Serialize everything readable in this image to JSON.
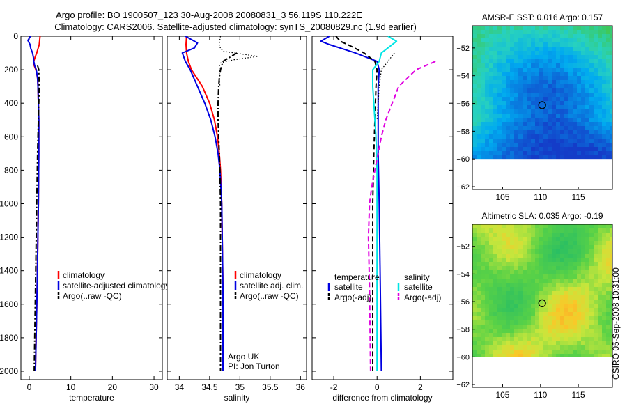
{
  "header": {
    "line1": "Argo profile: BO 1900507_123 30-Aug-2008 20080831_3 56.119S 110.222E",
    "line2": "Climatology: CARS2006. Satellite-adjusted climatology: synTS_20080829.nc (1.9d earlier)"
  },
  "side_text": "CSIRO 05-Sep-2008 10:31:00",
  "colors": {
    "red": "#ff0000",
    "blue": "#0000e0",
    "black": "#000000",
    "cyan": "#00e5e5",
    "magenta": "#e000e0"
  },
  "chart_data": [
    {
      "type": "line",
      "xlabel": "temperature",
      "xlim": [
        -2,
        32
      ],
      "xticks": [
        0,
        10,
        20,
        30
      ],
      "ylim": [
        2050,
        0
      ],
      "yticks": [
        0,
        200,
        400,
        600,
        800,
        1000,
        1200,
        1400,
        1600,
        1800,
        2000
      ],
      "legend": {
        "position": "lower-right",
        "entries": [
          "climatology",
          "satellite-adjusted climatology",
          "Argo(..raw -QC)"
        ]
      },
      "series": [
        {
          "name": "climatology",
          "color": "red",
          "style": "solid",
          "depth": [
            0,
            25,
            50,
            75,
            100,
            125,
            150,
            175,
            200,
            250,
            300,
            400,
            500,
            700,
            1000,
            1500,
            2000
          ],
          "values": [
            2.6,
            2.5,
            2.4,
            2.1,
            1.8,
            1.4,
            1.1,
            1.2,
            1.6,
            2.0,
            2.1,
            2.2,
            2.3,
            2.3,
            2.2,
            1.9,
            1.5
          ]
        },
        {
          "name": "satellite-adjusted climatology",
          "color": "blue",
          "style": "solid",
          "depth": [
            0,
            25,
            50,
            75,
            100,
            125,
            150,
            175,
            200,
            250,
            300,
            400,
            500,
            700,
            1000,
            1500,
            2000
          ],
          "values": [
            0.3,
            -0.3,
            0.2,
            0.4,
            0.8,
            1.0,
            1.1,
            1.3,
            1.7,
            2.0,
            2.1,
            2.2,
            2.3,
            2.3,
            2.2,
            1.9,
            1.5
          ]
        },
        {
          "name": "Argo(..raw -QC)",
          "color": "black",
          "style": "dashdot",
          "depth": [
            175,
            200,
            300,
            400,
            500,
            700,
            1000,
            1500,
            2000
          ],
          "values": [
            2.0,
            2.3,
            2.4,
            2.3,
            2.2,
            2.0,
            1.8,
            1.5,
            1.2
          ]
        }
      ]
    },
    {
      "type": "line",
      "xlabel": "salinity",
      "xlim": [
        33.8,
        36.1
      ],
      "xticks": [
        34,
        34.5,
        35,
        35.5,
        36
      ],
      "ylim": [
        2050,
        0
      ],
      "yticks": [
        0,
        200,
        400,
        600,
        800,
        1000,
        1200,
        1400,
        1600,
        1800,
        2000
      ],
      "legend": {
        "position": "lower-right",
        "entries": [
          "climatology",
          "satellite adj. clim.",
          "Argo(..raw -QC)"
        ]
      },
      "annotation": [
        "Argo UK",
        "PI: Jon Turton"
      ],
      "series": [
        {
          "name": "climatology",
          "color": "red",
          "style": "solid",
          "depth": [
            0,
            50,
            100,
            150,
            200,
            300,
            400,
            500,
            600,
            700,
            800,
            1000,
            1500,
            2000
          ],
          "values": [
            34.12,
            34.11,
            34.12,
            34.15,
            34.2,
            34.38,
            34.5,
            34.58,
            34.63,
            34.66,
            34.68,
            34.7,
            34.72,
            34.72
          ]
        },
        {
          "name": "satellite adj. clim.",
          "color": "blue",
          "style": "solid",
          "depth": [
            0,
            40,
            70,
            100,
            150,
            200,
            300,
            400,
            500,
            600,
            700,
            800,
            1000,
            1500,
            2000
          ],
          "values": [
            34.1,
            34.3,
            34.25,
            34.05,
            34.1,
            34.18,
            34.3,
            34.42,
            34.52,
            34.59,
            34.64,
            34.67,
            34.7,
            34.72,
            34.72
          ]
        },
        {
          "name": "Argo(..raw -QC)",
          "color": "black",
          "style": "dashdot",
          "depth": [
            100,
            150,
            175,
            200,
            250,
            300,
            400,
            500,
            600,
            700,
            800,
            1000,
            1500,
            2000
          ],
          "values": [
            34.95,
            34.72,
            34.7,
            34.68,
            34.66,
            34.65,
            34.64,
            34.64,
            34.65,
            34.66,
            34.67,
            34.68,
            34.68,
            34.68
          ]
        },
        {
          "name": "Argo near-surface",
          "color": "black",
          "style": "dotted",
          "depth": [
            0,
            20,
            60,
            90,
            120,
            140,
            160,
            180,
            200,
            260,
            300
          ],
          "values": [
            34.68,
            34.67,
            34.66,
            34.72,
            35.3,
            34.9,
            34.68,
            34.66,
            34.66,
            34.66,
            34.67
          ]
        }
      ]
    },
    {
      "type": "line",
      "xlabel": "difference from climatology",
      "xlim": [
        -3,
        3.5
      ],
      "xticks": [
        -2,
        0,
        2
      ],
      "ylim": [
        2050,
        0
      ],
      "yticks": [
        0,
        200,
        400,
        600,
        800,
        1000,
        1200,
        1400,
        1600,
        1800,
        2000
      ],
      "legend": {
        "position": "lower-right",
        "columns": [
          {
            "title": "temperature",
            "entries": [
              "satellite",
              "Argo(-adj)"
            ]
          },
          {
            "title": "salinity",
            "entries": [
              "satellite",
              "Argo(-adj)"
            ]
          }
        ]
      },
      "series": [
        {
          "name": "temperature satellite",
          "color": "blue",
          "style": "solid",
          "depth": [
            0,
            30,
            50,
            100,
            150,
            200,
            300,
            500,
            700,
            1000,
            1500,
            2000
          ],
          "values": [
            -2.2,
            -2.6,
            -2.2,
            -1.0,
            0.0,
            0.1,
            0.05,
            0.05,
            0.05,
            0.1,
            0.15,
            0.2
          ]
        },
        {
          "name": "temperature Argo(-adj)",
          "color": "black",
          "style": "dashed",
          "depth": [
            0,
            30,
            60,
            100,
            150,
            200,
            300,
            500,
            700,
            1000,
            1500,
            2000
          ],
          "values": [
            -1.9,
            -1.7,
            -1.2,
            -0.6,
            -0.1,
            0.0,
            -0.05,
            -0.1,
            -0.15,
            -0.2,
            -0.2,
            -0.2
          ]
        },
        {
          "name": "salinity satellite",
          "color": "cyan",
          "style": "solid",
          "depth": [
            0,
            30,
            60,
            100,
            150,
            200,
            300,
            400,
            500,
            600,
            800,
            1000,
            1500,
            2000
          ],
          "values": [
            0.5,
            0.9,
            0.6,
            0.2,
            0.1,
            -0.2,
            -0.2,
            -0.15,
            -0.1,
            -0.05,
            0.0,
            0.0,
            0.0,
            0.0
          ]
        },
        {
          "name": "salinity Argo(-adj)",
          "color": "magenta",
          "style": "dashed",
          "depth": [
            150,
            200,
            300,
            400,
            500,
            600,
            700,
            800,
            900,
            1000,
            1200,
            1500,
            2000
          ],
          "values": [
            2.7,
            1.8,
            1.0,
            0.7,
            0.4,
            0.2,
            0.05,
            -0.1,
            -0.25,
            -0.35,
            -0.4,
            -0.35,
            -0.3
          ]
        },
        {
          "name": "Argo temperature near-surface",
          "color": "black",
          "style": "dotted",
          "depth": [
            100,
            150,
            200,
            300,
            400,
            500
          ],
          "values": [
            0.8,
            0.5,
            0.2,
            0.1,
            0.05,
            0.0
          ]
        }
      ]
    },
    {
      "type": "heatmap",
      "title": "AMSR-E SST: 0.016 Argo: 0.157",
      "xlim": [
        101,
        119.5
      ],
      "xticks": [
        105,
        110,
        115
      ],
      "ylim": [
        -62.2,
        -50.4
      ],
      "yticks": [
        -52,
        -54,
        -56,
        -58,
        -60,
        -62
      ],
      "data_ymin": -60,
      "marker": {
        "lon": 110.222,
        "lat": -56.119
      },
      "palette": "blue-green-yellow"
    },
    {
      "type": "heatmap",
      "title": "Altimetric SLA: 0.035 Argo: -0.19",
      "xlim": [
        101,
        119.5
      ],
      "xticks": [
        105,
        110,
        115
      ],
      "ylim": [
        -62.2,
        -50.4
      ],
      "yticks": [
        -52,
        -54,
        -56,
        -58,
        -60,
        -62
      ],
      "data_ymin": -60,
      "marker": {
        "lon": 110.222,
        "lat": -56.119
      },
      "palette": "green-yellow-orange"
    }
  ]
}
